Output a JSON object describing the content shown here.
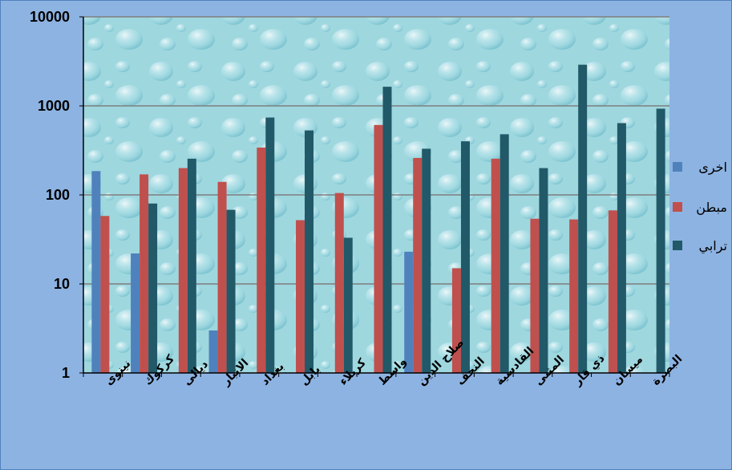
{
  "chart_data": {
    "type": "bar",
    "title": "",
    "xlabel": "",
    "ylabel": "",
    "yscale": "log",
    "ylim": [
      1,
      10000
    ],
    "yticks": [
      "1",
      "10",
      "100",
      "1000",
      "10000"
    ],
    "yticks_values": [
      1,
      10,
      100,
      1000,
      10000
    ],
    "grid": true,
    "legend_position": "right",
    "categories": [
      "نينوى",
      "كركوك",
      "ديالى",
      "الانبار",
      "بغداد",
      "بابل",
      "كربلاء",
      "واسط",
      "صلاح الدين",
      "النجف",
      "القادسية",
      "المثنى",
      "ذي قار",
      "ميسان",
      "البصرة"
    ],
    "series": [
      {
        "name": "اخرى",
        "color": "#4f81bd",
        "values": [
          185,
          22,
          null,
          3,
          null,
          null,
          null,
          null,
          23,
          null,
          null,
          null,
          null,
          null,
          null
        ]
      },
      {
        "name": "مبطن",
        "color": "#c0504d",
        "values": [
          58,
          170,
          200,
          140,
          340,
          52,
          105,
          610,
          260,
          15,
          255,
          54,
          53,
          67,
          null
        ]
      },
      {
        "name": "ترابي",
        "color": "#215968",
        "values": [
          null,
          80,
          255,
          68,
          740,
          530,
          33,
          1640,
          330,
          400,
          480,
          200,
          2900,
          640,
          930
        ]
      }
    ]
  }
}
